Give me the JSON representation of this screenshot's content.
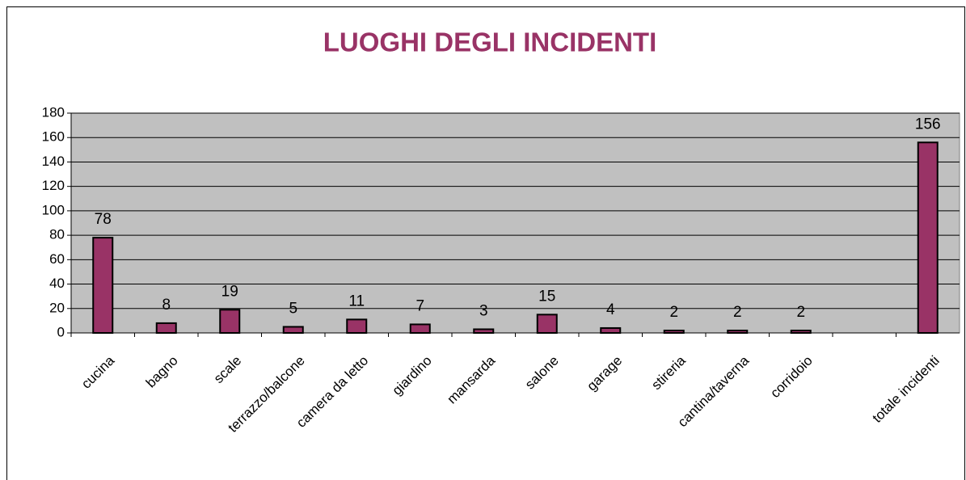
{
  "chart_data": {
    "type": "bar",
    "title": "LUOGHI DEGLI INCIDENTI",
    "categories": [
      "cucina",
      "bagno",
      "scale",
      "terrazzo/balcone",
      "camera da letto",
      "giardino",
      "mansarda",
      "salone",
      "garage",
      "stireria",
      "cantina/taverna",
      "corridoio",
      null,
      "totale incidenti"
    ],
    "values": [
      78,
      8,
      19,
      5,
      11,
      7,
      3,
      15,
      4,
      2,
      2,
      2,
      null,
      156
    ],
    "color": "#993366",
    "ylim": [
      0,
      180
    ],
    "yticks": [
      0,
      20,
      40,
      60,
      80,
      100,
      120,
      140,
      160,
      180
    ],
    "grid": true
  }
}
